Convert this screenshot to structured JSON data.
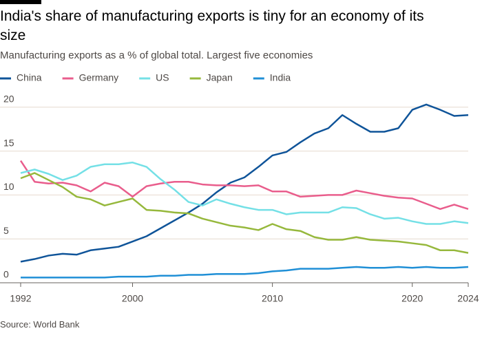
{
  "chart_data": {
    "type": "line",
    "title": "India's share of manufacturing exports is tiny for an economy of its size",
    "subtitle": "Manufacturing exports as a % of global total. Largest five economies",
    "source": "Source: World Bank",
    "x": [
      1992,
      1993,
      1994,
      1995,
      1996,
      1997,
      1998,
      1999,
      2000,
      2001,
      2002,
      2003,
      2004,
      2005,
      2006,
      2007,
      2008,
      2009,
      2010,
      2011,
      2012,
      2013,
      2014,
      2015,
      2016,
      2017,
      2018,
      2019,
      2020,
      2021,
      2022,
      2023,
      2024
    ],
    "xlim": [
      1992,
      2024
    ],
    "xticks": [
      1992,
      2000,
      2010,
      2020,
      2024
    ],
    "ylim": [
      0,
      21
    ],
    "yticks": [
      0,
      5,
      10,
      15,
      20
    ],
    "grid": true,
    "legend": "top",
    "series": [
      {
        "name": "China",
        "color": "#0f5499",
        "values": [
          2.4,
          2.7,
          3.1,
          3.3,
          3.2,
          3.7,
          3.9,
          4.1,
          4.7,
          5.3,
          6.2,
          7.1,
          8.0,
          9.0,
          10.3,
          11.4,
          12.0,
          13.2,
          14.5,
          14.9,
          16.0,
          17.0,
          17.6,
          19.1,
          18.1,
          17.2,
          17.2,
          17.6,
          19.7,
          20.3,
          19.7,
          19.0,
          19.1
        ]
      },
      {
        "name": "Germany",
        "color": "#e95d8c",
        "values": [
          13.9,
          11.5,
          11.3,
          11.4,
          11.1,
          10.4,
          11.4,
          11.0,
          9.8,
          11.0,
          11.3,
          11.5,
          11.5,
          11.2,
          11.1,
          11.1,
          11.0,
          11.1,
          10.4,
          10.4,
          9.8,
          9.9,
          10.0,
          10.0,
          10.5,
          10.2,
          9.9,
          9.7,
          9.6,
          9.0,
          8.4,
          8.9,
          8.4
        ]
      },
      {
        "name": "US",
        "color": "#74e0e6",
        "values": [
          12.5,
          12.9,
          12.4,
          11.7,
          12.2,
          13.2,
          13.5,
          13.5,
          13.7,
          13.2,
          11.8,
          10.6,
          9.2,
          8.8,
          9.5,
          9.0,
          8.6,
          8.3,
          8.3,
          7.8,
          8.0,
          8.0,
          8.0,
          8.6,
          8.5,
          7.8,
          7.3,
          7.4,
          7.0,
          6.7,
          6.7,
          7.0,
          6.8
        ]
      },
      {
        "name": "Japan",
        "color": "#96b83c",
        "values": [
          11.9,
          12.5,
          11.7,
          10.9,
          9.8,
          9.5,
          8.8,
          9.2,
          9.6,
          8.3,
          8.2,
          8.0,
          7.9,
          7.3,
          6.9,
          6.5,
          6.3,
          6.0,
          6.7,
          6.1,
          5.9,
          5.2,
          4.9,
          4.9,
          5.2,
          4.9,
          4.8,
          4.7,
          4.5,
          4.3,
          3.7,
          3.7,
          3.4
        ]
      },
      {
        "name": "India",
        "color": "#1f8fd6",
        "values": [
          0.6,
          0.6,
          0.6,
          0.6,
          0.6,
          0.6,
          0.6,
          0.7,
          0.7,
          0.7,
          0.8,
          0.8,
          0.9,
          0.9,
          1.0,
          1.0,
          1.0,
          1.1,
          1.3,
          1.4,
          1.6,
          1.6,
          1.6,
          1.7,
          1.8,
          1.7,
          1.7,
          1.8,
          1.7,
          1.8,
          1.7,
          1.7,
          1.8
        ]
      }
    ]
  }
}
